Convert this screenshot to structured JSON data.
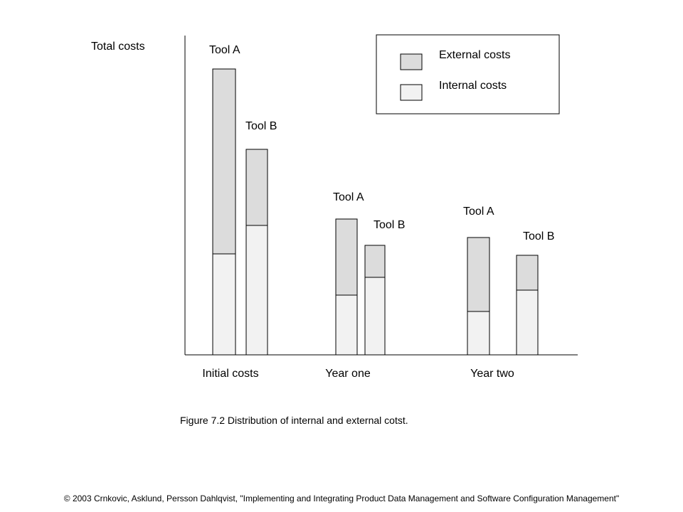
{
  "chart_data": {
    "type": "bar",
    "stacked": true,
    "ylabel": "Total costs",
    "groups": [
      {
        "label": "Initial costs",
        "bars": [
          {
            "label": "Tool A",
            "internal": 142,
            "external": 260
          },
          {
            "label": "Tool B",
            "internal": 182,
            "external": 107
          }
        ]
      },
      {
        "label": "Year one",
        "bars": [
          {
            "label": "Tool A",
            "internal": 84,
            "external": 107
          },
          {
            "label": "Tool B",
            "internal": 109,
            "external": 45
          }
        ]
      },
      {
        "label": "Year two",
        "bars": [
          {
            "label": "Tool A",
            "internal": 61,
            "external": 104
          },
          {
            "label": "Tool B",
            "internal": 91,
            "external": 49
          }
        ]
      }
    ],
    "legend": [
      {
        "name": "External costs",
        "key": "external",
        "color": "#dcdcdc"
      },
      {
        "name": "Internal costs",
        "key": "internal",
        "color": "#f2f2f2"
      }
    ],
    "legend_position": "top-right",
    "grid": false
  },
  "caption": "Figure 7.2 Distribution of internal and external cotst.",
  "credit": "© 2003 Crnkovic, Asklund, Persson Dahlqvist, \"Implementing and Integrating Product Data Management and Software Configuration Management\""
}
